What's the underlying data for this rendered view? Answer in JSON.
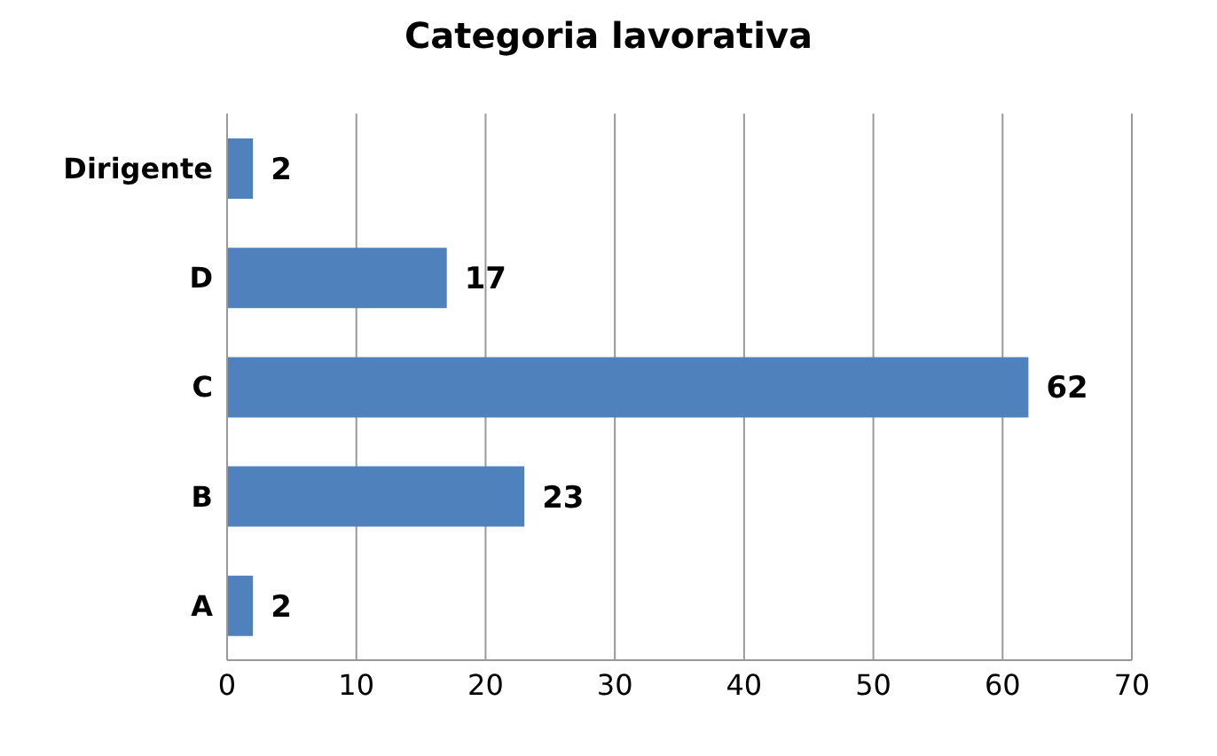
{
  "chart_data": {
    "type": "bar",
    "orientation": "horizontal",
    "title": "Categoria lavorativa",
    "categories": [
      "Dirigente",
      "D",
      "C",
      "B",
      "A"
    ],
    "values": [
      2,
      17,
      62,
      23,
      2
    ],
    "color": "#4f81bd",
    "xlim": [
      0,
      70
    ],
    "xticks": [
      0,
      10,
      20,
      30,
      40,
      50,
      60,
      70
    ],
    "grid": "x",
    "data_labels": true
  }
}
